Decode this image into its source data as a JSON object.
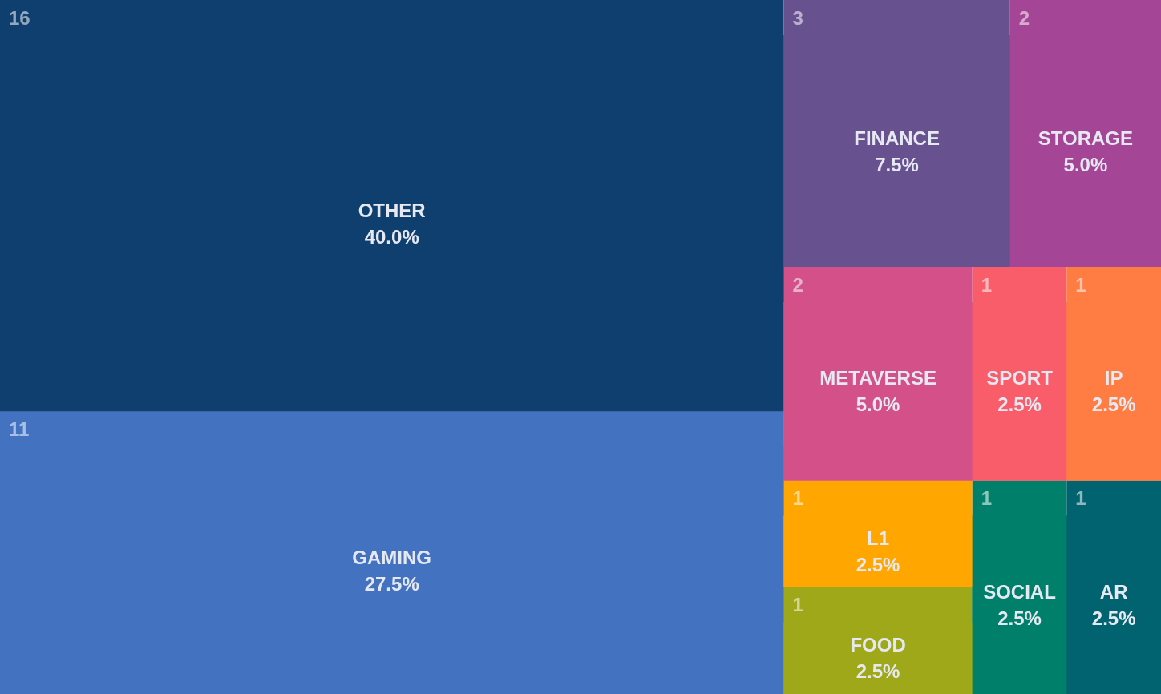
{
  "chart_data": {
    "type": "other",
    "categories": [
      "OTHER",
      "GAMING",
      "FINANCE",
      "STORAGE",
      "METAVERSE",
      "SPORT",
      "IP",
      "L1",
      "FOOD",
      "SOCIAL",
      "AR"
    ],
    "values": [
      40.0,
      27.5,
      7.5,
      5.0,
      5.0,
      2.5,
      2.5,
      2.5,
      2.5,
      2.5,
      2.5
    ],
    "value_labels": [
      "40.0%",
      "27.5%",
      "7.5%",
      "5.0%",
      "5.0%",
      "2.5%",
      "2.5%",
      "2.5%",
      "2.5%",
      "2.5%",
      "2.5%"
    ],
    "annotations": [
      "16",
      "11",
      "3",
      "2",
      "2",
      "1",
      "1",
      "1",
      "1",
      "1",
      "1"
    ],
    "colors": [
      "#0f3f6e",
      "#4272c0",
      "#67528f",
      "#a44695",
      "#d35188",
      "#f95d6a",
      "#ff7c43",
      "#ffa600",
      "#9ea819",
      "#00806a",
      "#00636f"
    ]
  }
}
